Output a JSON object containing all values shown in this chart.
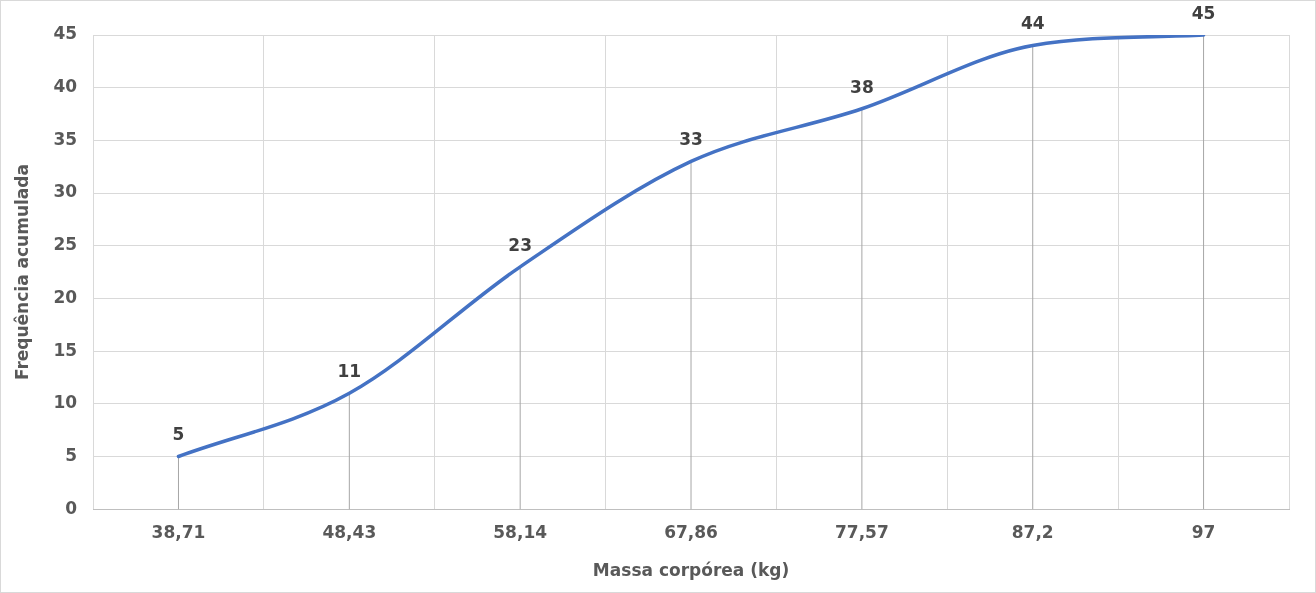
{
  "chart_data": {
    "type": "line",
    "xlabel": "Massa corpórea (kg)",
    "ylabel": "Frequência acumulada",
    "categories": [
      "38,71",
      "48,43",
      "58,14",
      "67,86",
      "77,57",
      "87,2",
      "97"
    ],
    "series": [
      {
        "color": "#4472c4",
        "values": [
          5,
          11,
          23,
          33,
          38,
          44,
          45
        ]
      }
    ],
    "ylim": [
      0,
      45
    ],
    "yticks": [
      0,
      5,
      10,
      15,
      20,
      25,
      30,
      35,
      40,
      45
    ],
    "grid": true,
    "legend": false,
    "marker": "none",
    "line_style": "solid",
    "data_labels": true
  }
}
